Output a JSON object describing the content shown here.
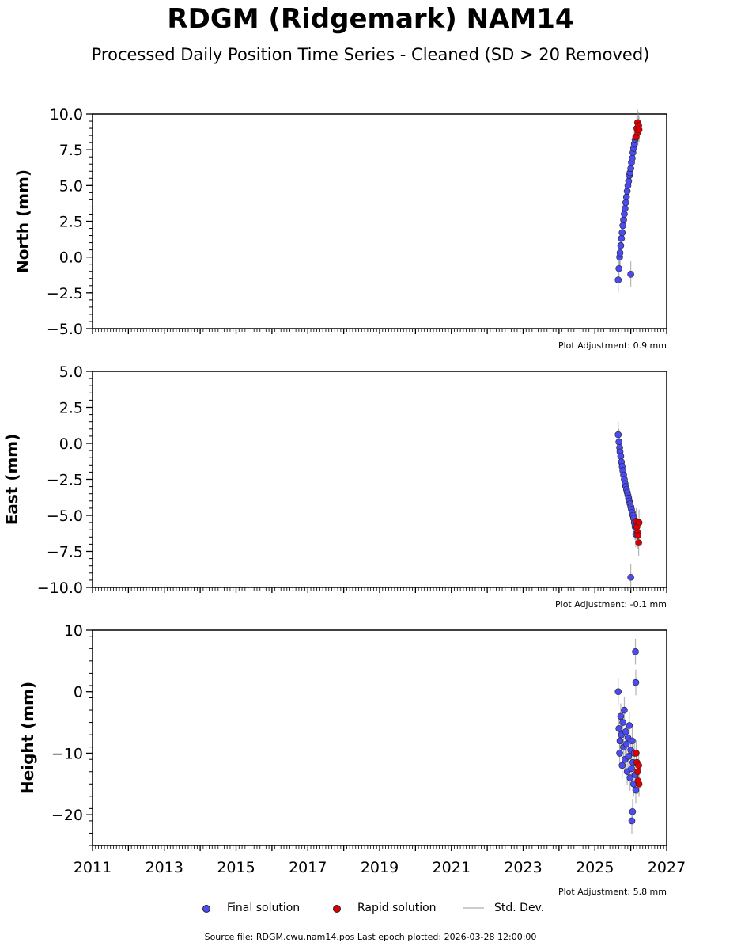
{
  "title": "RDGM (Ridgemark) NAM14",
  "subtitle": "Processed Daily Position Time Series - Cleaned (SD > 20 Removed)",
  "legend": {
    "final_label": "Final solution",
    "rapid_label": "Rapid solution",
    "std_label": "Std. Dev."
  },
  "footer": "Source file: RDGM.cwu.nam14.pos  Last epoch plotted: 2026-03-28 12:00:00",
  "colors": {
    "final": "#4b4bf0",
    "rapid": "#e00000",
    "std": "#7a7a7a"
  },
  "chart_data": [
    {
      "type": "scatter",
      "ylabel": "North (mm)",
      "ylim": [
        -5,
        10
      ],
      "yticks": [
        -5,
        -2.5,
        0,
        2.5,
        5,
        7.5,
        10
      ],
      "ytick_labels": [
        "−5.0",
        "−2.5",
        "0.0",
        "2.5",
        "5.0",
        "7.5",
        "10.0"
      ],
      "xlim": [
        2011,
        2027
      ],
      "adjustment": "Plot Adjustment: 0.9 mm",
      "series": [
        {
          "name": "Final solution",
          "x": [
            2025.65,
            2025.67,
            2025.69,
            2025.7,
            2025.72,
            2025.74,
            2025.76,
            2025.78,
            2025.8,
            2025.82,
            2025.84,
            2025.86,
            2025.88,
            2025.9,
            2025.92,
            2025.94,
            2025.96,
            2025.98,
            2026.0,
            2026.02,
            2026.04,
            2026.06,
            2026.08,
            2026.1,
            2026.12,
            2026.14,
            2026.0
          ],
          "y": [
            -1.6,
            -0.8,
            0.0,
            0.3,
            0.8,
            1.3,
            1.7,
            2.2,
            2.6,
            3.0,
            3.4,
            3.8,
            4.2,
            4.6,
            5.0,
            5.3,
            5.7,
            5.9,
            6.2,
            6.6,
            6.9,
            7.3,
            7.6,
            7.9,
            8.2,
            8.4,
            -1.2
          ]
        },
        {
          "name": "Rapid solution",
          "x": [
            2026.15,
            2026.17,
            2026.19,
            2026.2,
            2026.22,
            2026.23
          ],
          "y": [
            8.4,
            9.0,
            9.4,
            8.7,
            9.2,
            8.9
          ]
        }
      ]
    },
    {
      "type": "scatter",
      "ylabel": "East (mm)",
      "ylim": [
        -10,
        5
      ],
      "yticks": [
        -10,
        -7.5,
        -5,
        -2.5,
        0,
        2.5,
        5
      ],
      "ytick_labels": [
        "−10.0",
        "−7.5",
        "−5.0",
        "−2.5",
        "0.0",
        "2.5",
        "5.0"
      ],
      "xlim": [
        2011,
        2027
      ],
      "adjustment": "Plot Adjustment: -0.1 mm",
      "series": [
        {
          "name": "Final solution",
          "x": [
            2025.65,
            2025.67,
            2025.69,
            2025.7,
            2025.72,
            2025.74,
            2025.76,
            2025.78,
            2025.8,
            2025.82,
            2025.84,
            2025.86,
            2025.88,
            2025.9,
            2025.92,
            2025.94,
            2025.96,
            2025.98,
            2026.0,
            2026.02,
            2026.04,
            2026.06,
            2026.08,
            2026.1,
            2026.12,
            2026.14,
            2026.0
          ],
          "y": [
            0.6,
            0.1,
            -0.3,
            -0.6,
            -0.9,
            -1.3,
            -1.6,
            -1.9,
            -2.2,
            -2.5,
            -2.8,
            -3.0,
            -3.2,
            -3.4,
            -3.6,
            -3.8,
            -4.0,
            -4.2,
            -4.4,
            -4.6,
            -4.8,
            -5.0,
            -5.2,
            -5.5,
            -5.8,
            -6.3,
            -9.3
          ]
        },
        {
          "name": "Rapid solution",
          "x": [
            2026.15,
            2026.17,
            2026.19,
            2026.2,
            2026.22,
            2026.23
          ],
          "y": [
            -5.4,
            -5.8,
            -6.2,
            -6.4,
            -6.9,
            -5.5
          ]
        }
      ]
    },
    {
      "type": "scatter",
      "ylabel": "Height (mm)",
      "ylim": [
        -25,
        10
      ],
      "yticks": [
        -20,
        -10,
        0,
        10
      ],
      "ytick_labels": [
        "−20",
        "−10",
        "0",
        "10"
      ],
      "xlim": [
        2011,
        2027
      ],
      "xticks": [
        2011,
        2013,
        2015,
        2017,
        2019,
        2021,
        2023,
        2025,
        2027
      ],
      "adjustment": "Plot Adjustment: 5.8 mm",
      "series": [
        {
          "name": "Final solution",
          "x": [
            2025.65,
            2025.67,
            2025.69,
            2025.7,
            2025.72,
            2025.74,
            2025.76,
            2025.78,
            2025.8,
            2025.82,
            2025.84,
            2025.86,
            2025.88,
            2025.9,
            2025.92,
            2025.94,
            2025.96,
            2025.98,
            2026.0,
            2026.02,
            2026.04,
            2026.06,
            2026.08,
            2026.1,
            2026.12,
            2026.14,
            2026.13,
            2026.14,
            2026.03,
            2026.05
          ],
          "y": [
            0.0,
            -6.0,
            -10.0,
            -8.0,
            -4.0,
            -7.0,
            -12.0,
            -5.0,
            -9.0,
            -3.0,
            -11.0,
            -6.5,
            -8.5,
            -13.0,
            -7.5,
            -10.5,
            -5.5,
            -14.0,
            -9.5,
            -12.5,
            -8.0,
            -11.5,
            -15.0,
            -10.0,
            -13.5,
            -16.0,
            6.5,
            1.5,
            -21.0,
            -19.5
          ]
        },
        {
          "name": "Rapid solution",
          "x": [
            2026.15,
            2026.17,
            2026.19,
            2026.2,
            2026.22,
            2026.23
          ],
          "y": [
            -10.0,
            -11.5,
            -13.0,
            -14.5,
            -12.0,
            -15.0
          ]
        }
      ]
    }
  ]
}
